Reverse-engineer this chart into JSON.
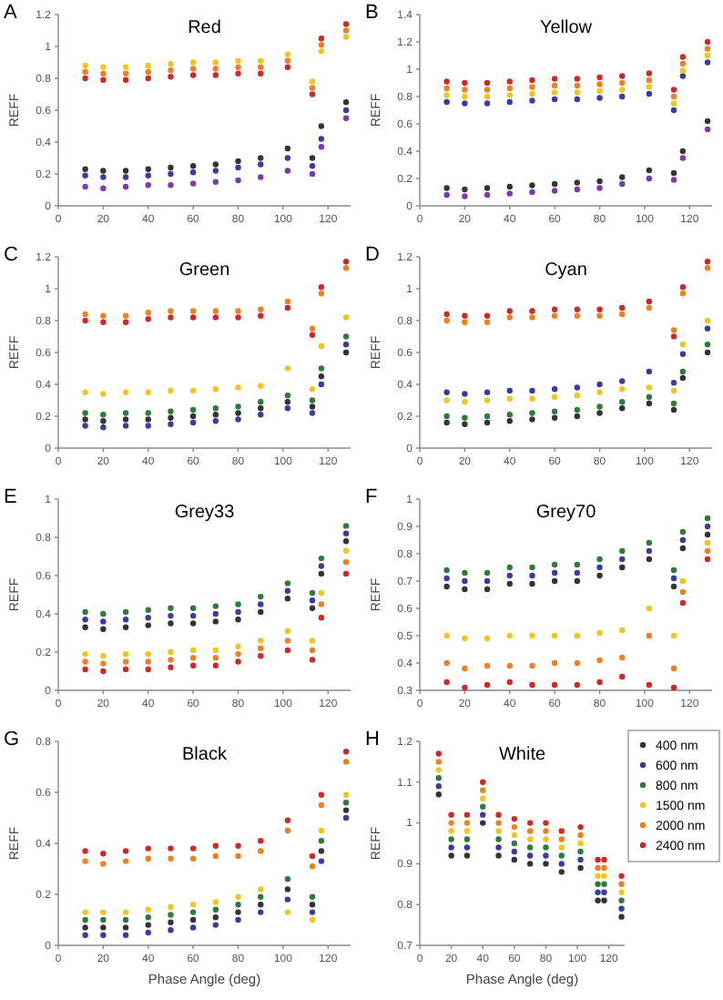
{
  "chart_data": [
    {
      "type": "scatter",
      "title": "Red",
      "ylabel": "REFF",
      "annotations": [
        "A"
      ],
      "marker": "circle",
      "x": [
        12,
        20,
        30,
        40,
        50,
        60,
        70,
        80,
        90,
        102,
        113,
        117,
        128
      ],
      "xlim": [
        0,
        130
      ],
      "xticks": [
        0,
        20,
        40,
        60,
        80,
        100,
        120
      ],
      "ylim": [
        0,
        1.2
      ],
      "yticks": [
        0,
        0.2,
        0.4,
        0.6,
        0.8,
        1,
        1.2
      ],
      "series": [
        {
          "color": "#333333",
          "values": [
            0.23,
            0.22,
            0.22,
            0.23,
            0.24,
            0.25,
            0.26,
            0.28,
            0.3,
            0.36,
            0.3,
            0.5,
            0.65
          ]
        },
        {
          "color": "#3a3aa0",
          "values": [
            0.19,
            0.18,
            0.18,
            0.19,
            0.2,
            0.21,
            0.22,
            0.24,
            0.26,
            0.3,
            0.25,
            0.42,
            0.6
          ]
        },
        {
          "color": "#7a3ab0",
          "values": [
            0.12,
            0.11,
            0.12,
            0.13,
            0.13,
            0.14,
            0.15,
            0.16,
            0.18,
            0.22,
            0.2,
            0.37,
            0.55
          ]
        },
        {
          "color": "#f2c41e",
          "values": [
            0.88,
            0.87,
            0.87,
            0.88,
            0.89,
            0.9,
            0.9,
            0.91,
            0.91,
            0.95,
            0.78,
            0.97,
            1.06
          ]
        },
        {
          "color": "#f0801e",
          "values": [
            0.84,
            0.83,
            0.83,
            0.84,
            0.85,
            0.86,
            0.86,
            0.87,
            0.87,
            0.91,
            0.74,
            1.01,
            1.1
          ]
        },
        {
          "color": "#d02828",
          "values": [
            0.8,
            0.79,
            0.79,
            0.8,
            0.81,
            0.82,
            0.82,
            0.83,
            0.83,
            0.87,
            0.7,
            1.05,
            1.14
          ]
        }
      ]
    },
    {
      "type": "scatter",
      "title": "Yellow",
      "ylabel": "REFF",
      "annotations": [
        "B"
      ],
      "marker": "circle",
      "x": [
        12,
        20,
        30,
        40,
        50,
        60,
        70,
        80,
        90,
        102,
        113,
        117,
        128
      ],
      "xlim": [
        0,
        130
      ],
      "xticks": [
        0,
        20,
        40,
        60,
        80,
        100,
        120
      ],
      "ylim": [
        0,
        1.4
      ],
      "yticks": [
        0,
        0.2,
        0.4,
        0.6,
        0.8,
        1,
        1.2,
        1.4
      ],
      "series": [
        {
          "color": "#333333",
          "values": [
            0.13,
            0.12,
            0.13,
            0.14,
            0.15,
            0.16,
            0.17,
            0.18,
            0.21,
            0.26,
            0.24,
            0.4,
            0.62
          ]
        },
        {
          "color": "#3a3aa0",
          "values": [
            0.76,
            0.75,
            0.75,
            0.76,
            0.77,
            0.78,
            0.78,
            0.79,
            0.8,
            0.82,
            0.7,
            0.95,
            1.05
          ]
        },
        {
          "color": "#7a3ab0",
          "values": [
            0.08,
            0.07,
            0.08,
            0.09,
            0.1,
            0.11,
            0.12,
            0.13,
            0.16,
            0.2,
            0.19,
            0.35,
            0.56
          ]
        },
        {
          "color": "#f2c41e",
          "values": [
            0.81,
            0.8,
            0.8,
            0.81,
            0.82,
            0.83,
            0.83,
            0.84,
            0.85,
            0.87,
            0.75,
            0.99,
            1.1
          ]
        },
        {
          "color": "#f0801e",
          "values": [
            0.86,
            0.85,
            0.85,
            0.86,
            0.87,
            0.88,
            0.88,
            0.89,
            0.9,
            0.92,
            0.8,
            1.04,
            1.15
          ]
        },
        {
          "color": "#d02828",
          "values": [
            0.91,
            0.9,
            0.9,
            0.91,
            0.92,
            0.93,
            0.93,
            0.94,
            0.95,
            0.97,
            0.85,
            1.09,
            1.2
          ]
        }
      ]
    },
    {
      "type": "scatter",
      "title": "Green",
      "ylabel": "REFF",
      "annotations": [
        "C"
      ],
      "marker": "circle",
      "x": [
        12,
        20,
        30,
        40,
        50,
        60,
        70,
        80,
        90,
        102,
        113,
        117,
        128
      ],
      "xlim": [
        0,
        130
      ],
      "xticks": [
        0,
        20,
        40,
        60,
        80,
        100,
        120
      ],
      "ylim": [
        0,
        1.2
      ],
      "yticks": [
        0,
        0.2,
        0.4,
        0.6,
        0.8,
        1,
        1.2
      ],
      "series": [
        {
          "color": "#333333",
          "values": [
            0.18,
            0.17,
            0.18,
            0.18,
            0.19,
            0.2,
            0.21,
            0.22,
            0.25,
            0.29,
            0.26,
            0.45,
            0.6
          ]
        },
        {
          "color": "#3a3aa0",
          "values": [
            0.14,
            0.13,
            0.14,
            0.14,
            0.15,
            0.16,
            0.17,
            0.18,
            0.21,
            0.25,
            0.22,
            0.4,
            0.65
          ]
        },
        {
          "color": "#2e7a3a",
          "values": [
            0.22,
            0.21,
            0.22,
            0.22,
            0.23,
            0.24,
            0.25,
            0.26,
            0.29,
            0.33,
            0.3,
            0.5,
            0.7
          ]
        },
        {
          "color": "#f2c41e",
          "values": [
            0.35,
            0.34,
            0.35,
            0.35,
            0.36,
            0.36,
            0.37,
            0.38,
            0.39,
            0.5,
            0.37,
            0.64,
            0.82
          ]
        },
        {
          "color": "#f0801e",
          "values": [
            0.84,
            0.83,
            0.83,
            0.85,
            0.86,
            0.86,
            0.86,
            0.86,
            0.87,
            0.92,
            0.75,
            0.97,
            1.13
          ]
        },
        {
          "color": "#d02828",
          "values": [
            0.8,
            0.79,
            0.79,
            0.81,
            0.82,
            0.82,
            0.82,
            0.82,
            0.83,
            0.88,
            0.71,
            1.01,
            1.17
          ]
        }
      ]
    },
    {
      "type": "scatter",
      "title": "Cyan",
      "ylabel": "REFF",
      "annotations": [
        "D"
      ],
      "marker": "circle",
      "x": [
        12,
        20,
        30,
        40,
        50,
        60,
        70,
        80,
        90,
        102,
        113,
        117,
        128
      ],
      "xlim": [
        0,
        130
      ],
      "xticks": [
        0,
        20,
        40,
        60,
        80,
        100,
        120
      ],
      "ylim": [
        0,
        1.2
      ],
      "yticks": [
        0,
        0.2,
        0.4,
        0.6,
        0.8,
        1,
        1.2
      ],
      "series": [
        {
          "color": "#333333",
          "values": [
            0.16,
            0.15,
            0.16,
            0.17,
            0.18,
            0.19,
            0.2,
            0.22,
            0.25,
            0.28,
            0.24,
            0.44,
            0.6
          ]
        },
        {
          "color": "#3a3aa0",
          "values": [
            0.35,
            0.34,
            0.35,
            0.36,
            0.36,
            0.37,
            0.38,
            0.4,
            0.42,
            0.48,
            0.41,
            0.59,
            0.75
          ]
        },
        {
          "color": "#2e7a3a",
          "values": [
            0.2,
            0.19,
            0.2,
            0.21,
            0.22,
            0.23,
            0.24,
            0.26,
            0.29,
            0.32,
            0.28,
            0.48,
            0.65
          ]
        },
        {
          "color": "#f2c41e",
          "values": [
            0.3,
            0.29,
            0.3,
            0.31,
            0.31,
            0.32,
            0.33,
            0.35,
            0.37,
            0.38,
            0.36,
            0.65,
            0.8
          ]
        },
        {
          "color": "#f0801e",
          "values": [
            0.8,
            0.79,
            0.79,
            0.82,
            0.82,
            0.83,
            0.83,
            0.83,
            0.84,
            0.88,
            0.74,
            0.97,
            1.13
          ]
        },
        {
          "color": "#d02828",
          "values": [
            0.84,
            0.83,
            0.83,
            0.86,
            0.86,
            0.87,
            0.87,
            0.87,
            0.88,
            0.92,
            0.7,
            1.01,
            1.17
          ]
        }
      ]
    },
    {
      "type": "scatter",
      "title": "Grey33",
      "ylabel": "REFF",
      "annotations": [
        "E"
      ],
      "marker": "circle",
      "x": [
        12,
        20,
        30,
        40,
        50,
        60,
        70,
        80,
        90,
        102,
        113,
        117,
        128
      ],
      "xlim": [
        0,
        130
      ],
      "xticks": [
        0,
        20,
        40,
        60,
        80,
        100,
        120
      ],
      "ylim": [
        0,
        1
      ],
      "yticks": [
        0,
        0.2,
        0.4,
        0.6,
        0.8,
        1
      ],
      "series": [
        {
          "color": "#333333",
          "values": [
            0.33,
            0.32,
            0.33,
            0.34,
            0.35,
            0.35,
            0.36,
            0.37,
            0.41,
            0.48,
            0.43,
            0.61,
            0.78
          ]
        },
        {
          "color": "#3a3aa0",
          "values": [
            0.37,
            0.36,
            0.37,
            0.38,
            0.39,
            0.39,
            0.4,
            0.41,
            0.45,
            0.52,
            0.47,
            0.65,
            0.82
          ]
        },
        {
          "color": "#2e7a3a",
          "values": [
            0.41,
            0.4,
            0.41,
            0.42,
            0.43,
            0.43,
            0.44,
            0.45,
            0.49,
            0.56,
            0.51,
            0.69,
            0.86
          ]
        },
        {
          "color": "#f2c41e",
          "values": [
            0.19,
            0.18,
            0.19,
            0.19,
            0.2,
            0.21,
            0.21,
            0.23,
            0.26,
            0.31,
            0.26,
            0.51,
            0.73
          ]
        },
        {
          "color": "#f0801e",
          "values": [
            0.15,
            0.14,
            0.15,
            0.15,
            0.16,
            0.17,
            0.17,
            0.19,
            0.22,
            0.26,
            0.21,
            0.45,
            0.67
          ]
        },
        {
          "color": "#d02828",
          "values": [
            0.11,
            0.1,
            0.11,
            0.11,
            0.12,
            0.13,
            0.13,
            0.15,
            0.18,
            0.21,
            0.16,
            0.38,
            0.61
          ]
        }
      ]
    },
    {
      "type": "scatter",
      "title": "Grey70",
      "ylabel": "REFF",
      "annotations": [
        "F"
      ],
      "marker": "circle",
      "x": [
        12,
        20,
        30,
        40,
        50,
        60,
        70,
        80,
        90,
        102,
        113,
        117,
        128
      ],
      "xlim": [
        0,
        130
      ],
      "xticks": [
        0,
        20,
        40,
        60,
        80,
        100,
        120
      ],
      "ylim": [
        0.3,
        1
      ],
      "yticks": [
        0.3,
        0.4,
        0.5,
        0.6,
        0.7,
        0.8,
        0.9,
        1
      ],
      "series": [
        {
          "color": "#333333",
          "values": [
            0.68,
            0.67,
            0.67,
            0.69,
            0.69,
            0.7,
            0.7,
            0.72,
            0.75,
            0.78,
            0.68,
            0.82,
            0.87
          ]
        },
        {
          "color": "#3a3aa0",
          "values": [
            0.71,
            0.7,
            0.7,
            0.72,
            0.72,
            0.73,
            0.73,
            0.75,
            0.78,
            0.81,
            0.71,
            0.85,
            0.9
          ]
        },
        {
          "color": "#2e7a3a",
          "values": [
            0.74,
            0.73,
            0.73,
            0.75,
            0.75,
            0.76,
            0.76,
            0.78,
            0.81,
            0.84,
            0.74,
            0.88,
            0.93
          ]
        },
        {
          "color": "#f2c41e",
          "values": [
            0.5,
            0.49,
            0.49,
            0.5,
            0.5,
            0.5,
            0.5,
            0.51,
            0.52,
            0.6,
            0.5,
            0.7,
            0.84
          ]
        },
        {
          "color": "#f0801e",
          "values": [
            0.4,
            0.38,
            0.39,
            0.39,
            0.39,
            0.4,
            0.4,
            0.41,
            0.42,
            0.5,
            0.38,
            0.66,
            0.81
          ]
        },
        {
          "color": "#d02828",
          "values": [
            0.33,
            0.31,
            0.32,
            0.33,
            0.32,
            0.32,
            0.32,
            0.33,
            0.35,
            0.32,
            0.31,
            0.62,
            0.78
          ]
        }
      ]
    },
    {
      "type": "scatter",
      "title": "Black",
      "xlabel": "Phase Angle (deg)",
      "ylabel": "REFF",
      "annotations": [
        "G"
      ],
      "marker": "circle",
      "x": [
        12,
        20,
        30,
        40,
        50,
        60,
        70,
        80,
        90,
        102,
        113,
        117,
        128
      ],
      "xlim": [
        0,
        130
      ],
      "xticks": [
        0,
        20,
        40,
        60,
        80,
        100,
        120
      ],
      "ylim": [
        0,
        0.8
      ],
      "yticks": [
        0,
        0.2,
        0.4,
        0.6,
        0.8
      ],
      "series": [
        {
          "color": "#333333",
          "values": [
            0.07,
            0.07,
            0.07,
            0.08,
            0.09,
            0.1,
            0.11,
            0.13,
            0.16,
            0.22,
            0.16,
            0.37,
            0.53
          ]
        },
        {
          "color": "#3a3aa0",
          "values": [
            0.04,
            0.04,
            0.04,
            0.05,
            0.06,
            0.07,
            0.08,
            0.1,
            0.13,
            0.18,
            0.13,
            0.33,
            0.5
          ]
        },
        {
          "color": "#2e7a3a",
          "values": [
            0.1,
            0.1,
            0.1,
            0.11,
            0.12,
            0.13,
            0.14,
            0.16,
            0.19,
            0.26,
            0.19,
            0.41,
            0.56
          ]
        },
        {
          "color": "#f2c41e",
          "values": [
            0.13,
            0.13,
            0.13,
            0.14,
            0.15,
            0.16,
            0.17,
            0.19,
            0.22,
            0.13,
            0.1,
            0.45,
            0.59
          ]
        },
        {
          "color": "#f0801e",
          "values": [
            0.33,
            0.32,
            0.33,
            0.34,
            0.34,
            0.34,
            0.35,
            0.35,
            0.37,
            0.45,
            0.31,
            0.55,
            0.72
          ]
        },
        {
          "color": "#d02828",
          "values": [
            0.37,
            0.36,
            0.37,
            0.38,
            0.38,
            0.38,
            0.39,
            0.39,
            0.41,
            0.49,
            0.35,
            0.59,
            0.76
          ]
        }
      ]
    },
    {
      "type": "scatter",
      "title": "White",
      "xlabel": "Phase Angle (deg)",
      "ylabel": "REFF",
      "annotations": [
        "H"
      ],
      "marker": "circle",
      "legend": "top right",
      "x": [
        12,
        20,
        30,
        40,
        50,
        60,
        70,
        80,
        90,
        102,
        113,
        117,
        128
      ],
      "xlim": [
        0,
        130
      ],
      "xticks": [
        0,
        20,
        40,
        60,
        80,
        100,
        120
      ],
      "ylim": [
        0.7,
        1.2
      ],
      "yticks": [
        0.7,
        0.8,
        0.9,
        1,
        1.1,
        1.2
      ],
      "series": [
        {
          "name": "400 nm",
          "color": "#333333",
          "values": [
            1.07,
            0.92,
            0.92,
            1,
            0.92,
            0.91,
            0.9,
            0.9,
            0.88,
            0.89,
            0.81,
            0.81,
            0.77
          ]
        },
        {
          "name": "600 nm",
          "color": "#3a3aa0",
          "values": [
            1.09,
            0.94,
            0.94,
            1.02,
            0.94,
            0.93,
            0.92,
            0.92,
            0.9,
            0.91,
            0.83,
            0.83,
            0.79
          ]
        },
        {
          "name": "800 nm",
          "color": "#2e7a3a",
          "values": [
            1.11,
            0.96,
            0.96,
            1.04,
            0.96,
            0.95,
            0.94,
            0.94,
            0.92,
            0.93,
            0.85,
            0.85,
            0.81
          ]
        },
        {
          "name": "1500 nm",
          "color": "#f2c41e",
          "values": [
            1.13,
            0.98,
            0.98,
            1.06,
            0.98,
            0.97,
            0.96,
            0.96,
            0.94,
            0.95,
            0.87,
            0.87,
            0.83
          ]
        },
        {
          "name": "2000 nm",
          "color": "#f0801e",
          "values": [
            1.15,
            1,
            1,
            1.08,
            1,
            0.99,
            0.98,
            0.98,
            0.96,
            0.97,
            0.89,
            0.89,
            0.85
          ]
        },
        {
          "name": "2400 nm",
          "color": "#d02828",
          "values": [
            1.17,
            1.02,
            1.02,
            1.1,
            1.02,
            1.01,
            1,
            1,
            0.98,
            0.99,
            0.91,
            0.91,
            0.87
          ]
        }
      ]
    }
  ]
}
